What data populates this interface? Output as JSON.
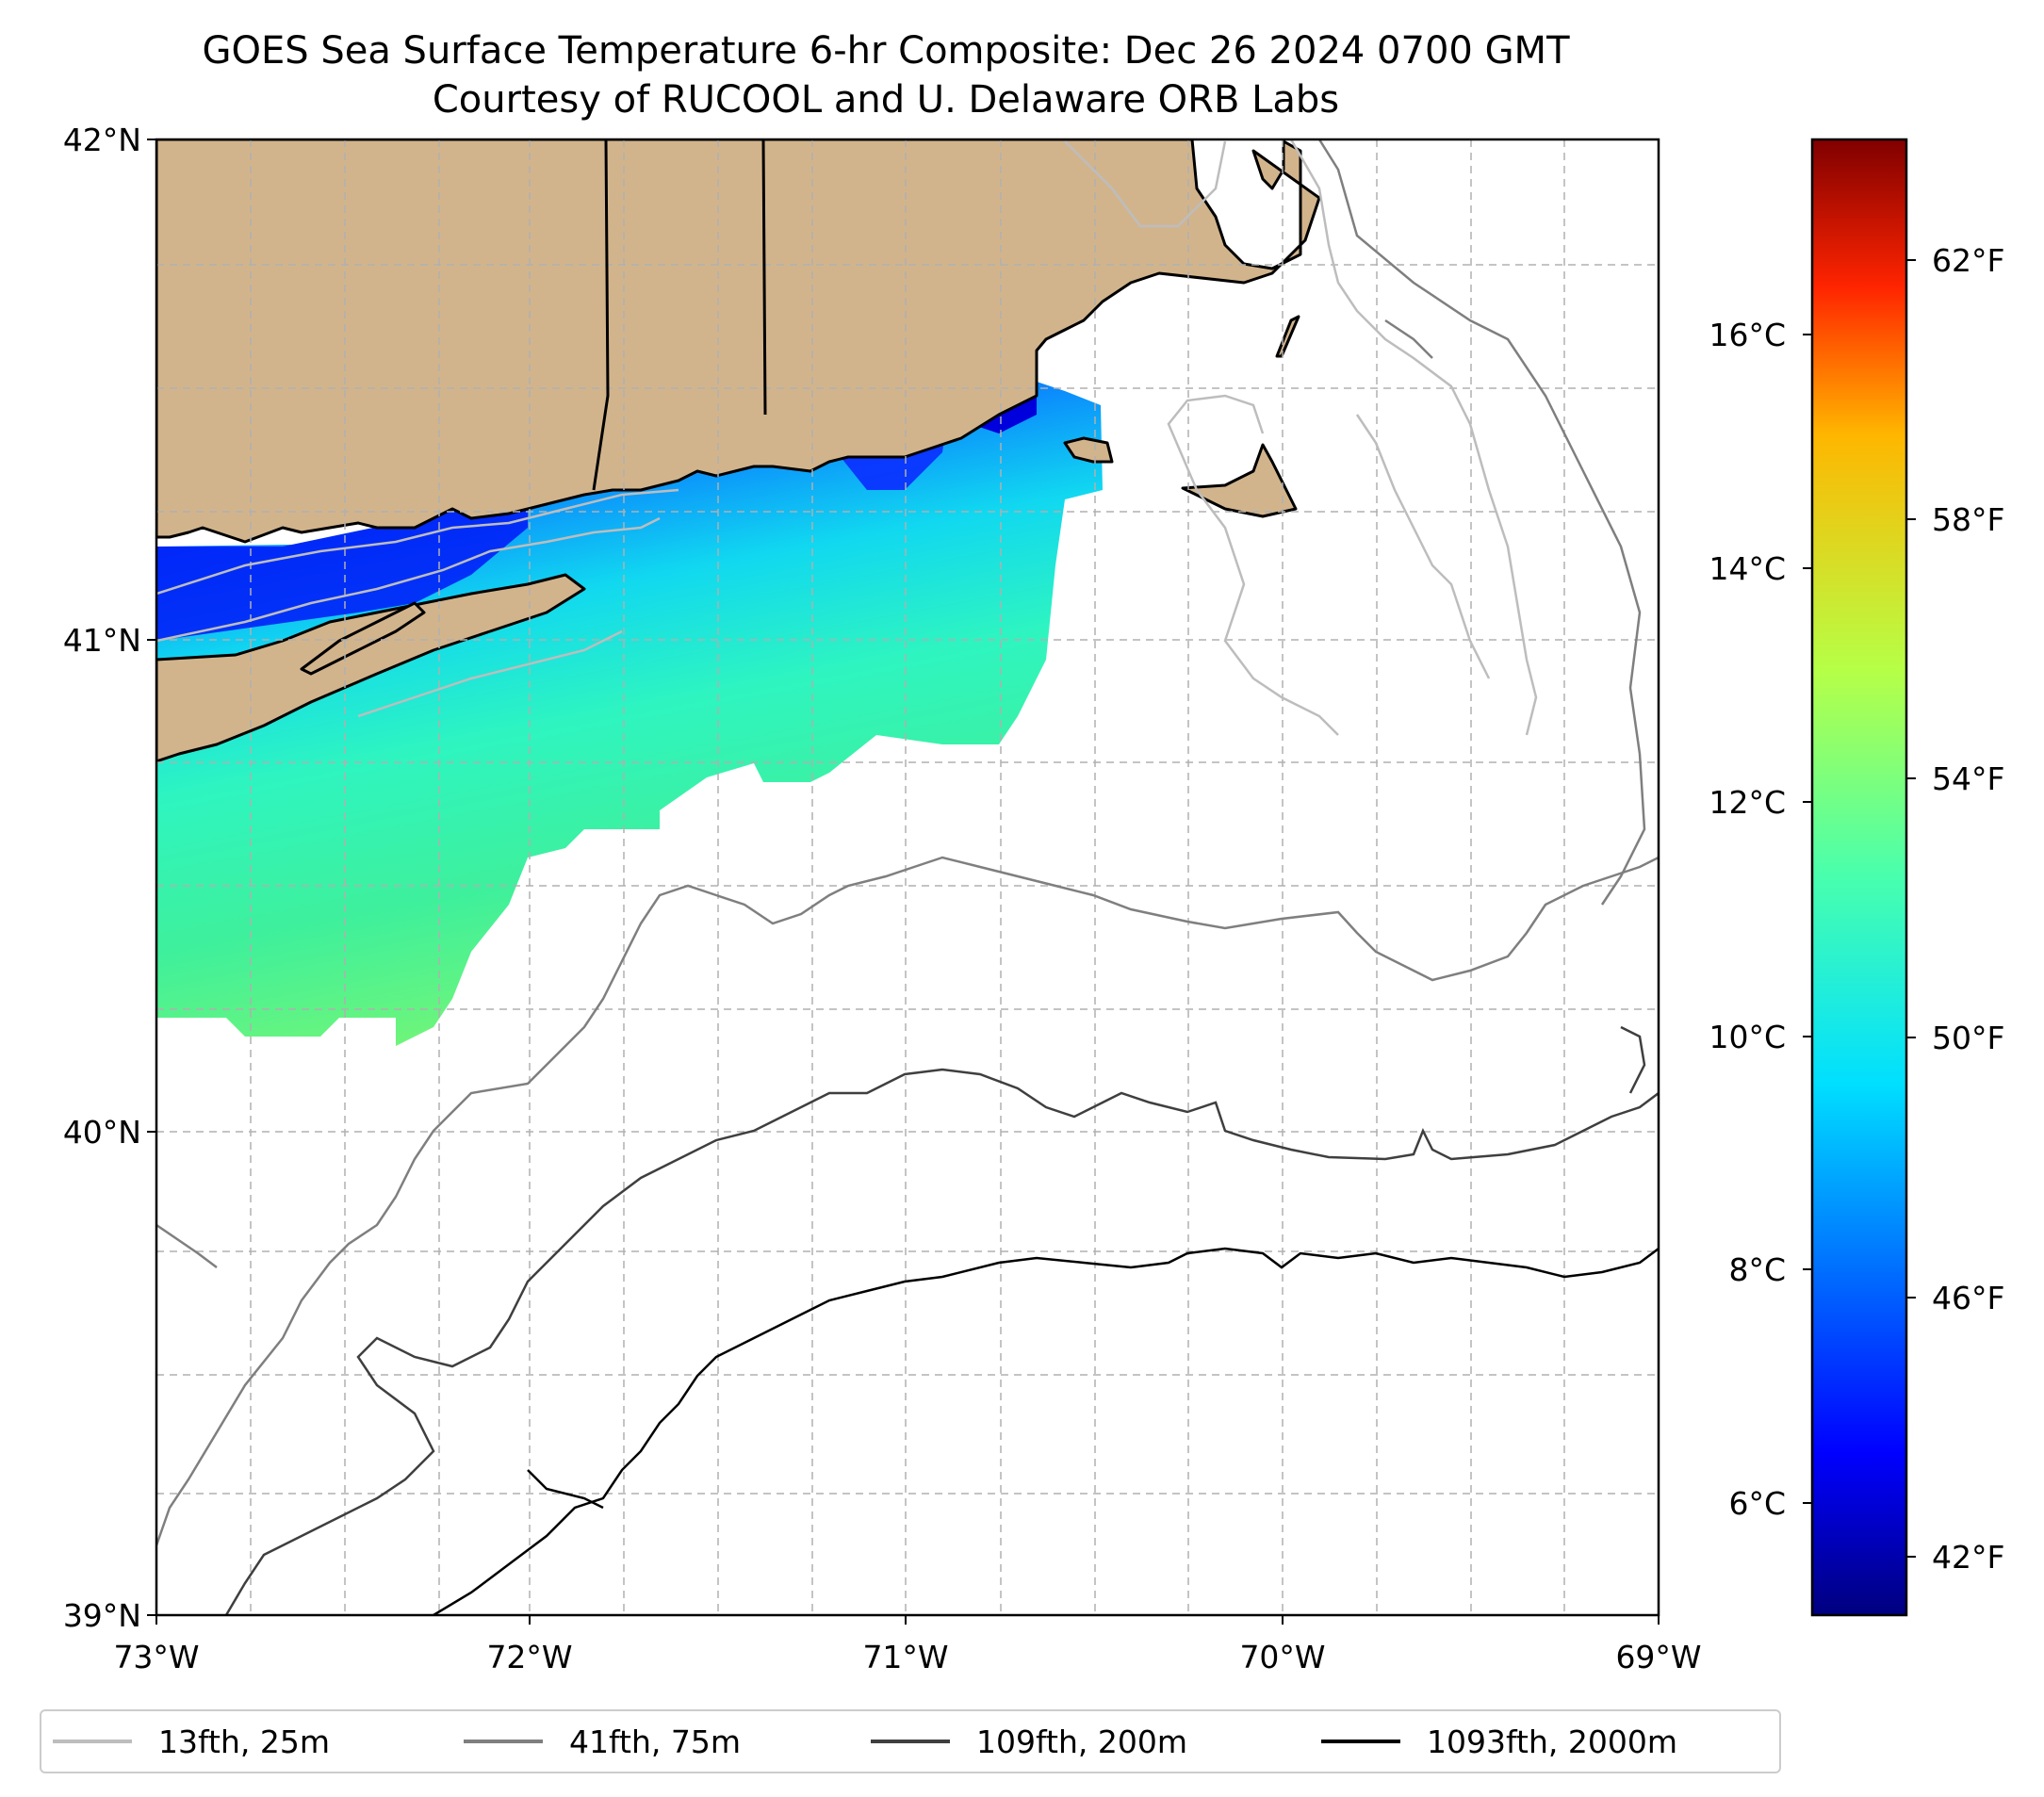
{
  "title_line1": "GOES Sea Surface Temperature 6-hr Composite: Dec 26 2024 0700 GMT",
  "title_line2": "Courtesy of RUCOOL and U. Delaware ORB Labs",
  "map": {
    "lat_labels": [
      "42°N",
      "41°N",
      "40°N",
      "39°N"
    ],
    "lon_labels": [
      "73°W",
      "72°W",
      "71°W",
      "70°W",
      "69°W"
    ],
    "extent": {
      "lon_min": -73,
      "lon_max": -69,
      "lat_min": 39,
      "lat_max": 42
    },
    "land_color": "#d2b48c",
    "gridlines": true
  },
  "colorbar": {
    "colormap": "jet",
    "celsius_labels": [
      "16°C",
      "14°C",
      "12°C",
      "10°C",
      "8°C",
      "6°C"
    ],
    "fahrenheit_labels": [
      "62°F",
      "58°F",
      "54°F",
      "50°F",
      "46°F",
      "42°F"
    ]
  },
  "legend": [
    {
      "label": "13fth, 25m",
      "color": "#bdbdbd"
    },
    {
      "label": "41fth, 75m",
      "color": "#7f7f7f"
    },
    {
      "label": "109fth, 200m",
      "color": "#3f3f3f"
    },
    {
      "label": "1093fth, 2000m",
      "color": "#000000"
    }
  ]
}
